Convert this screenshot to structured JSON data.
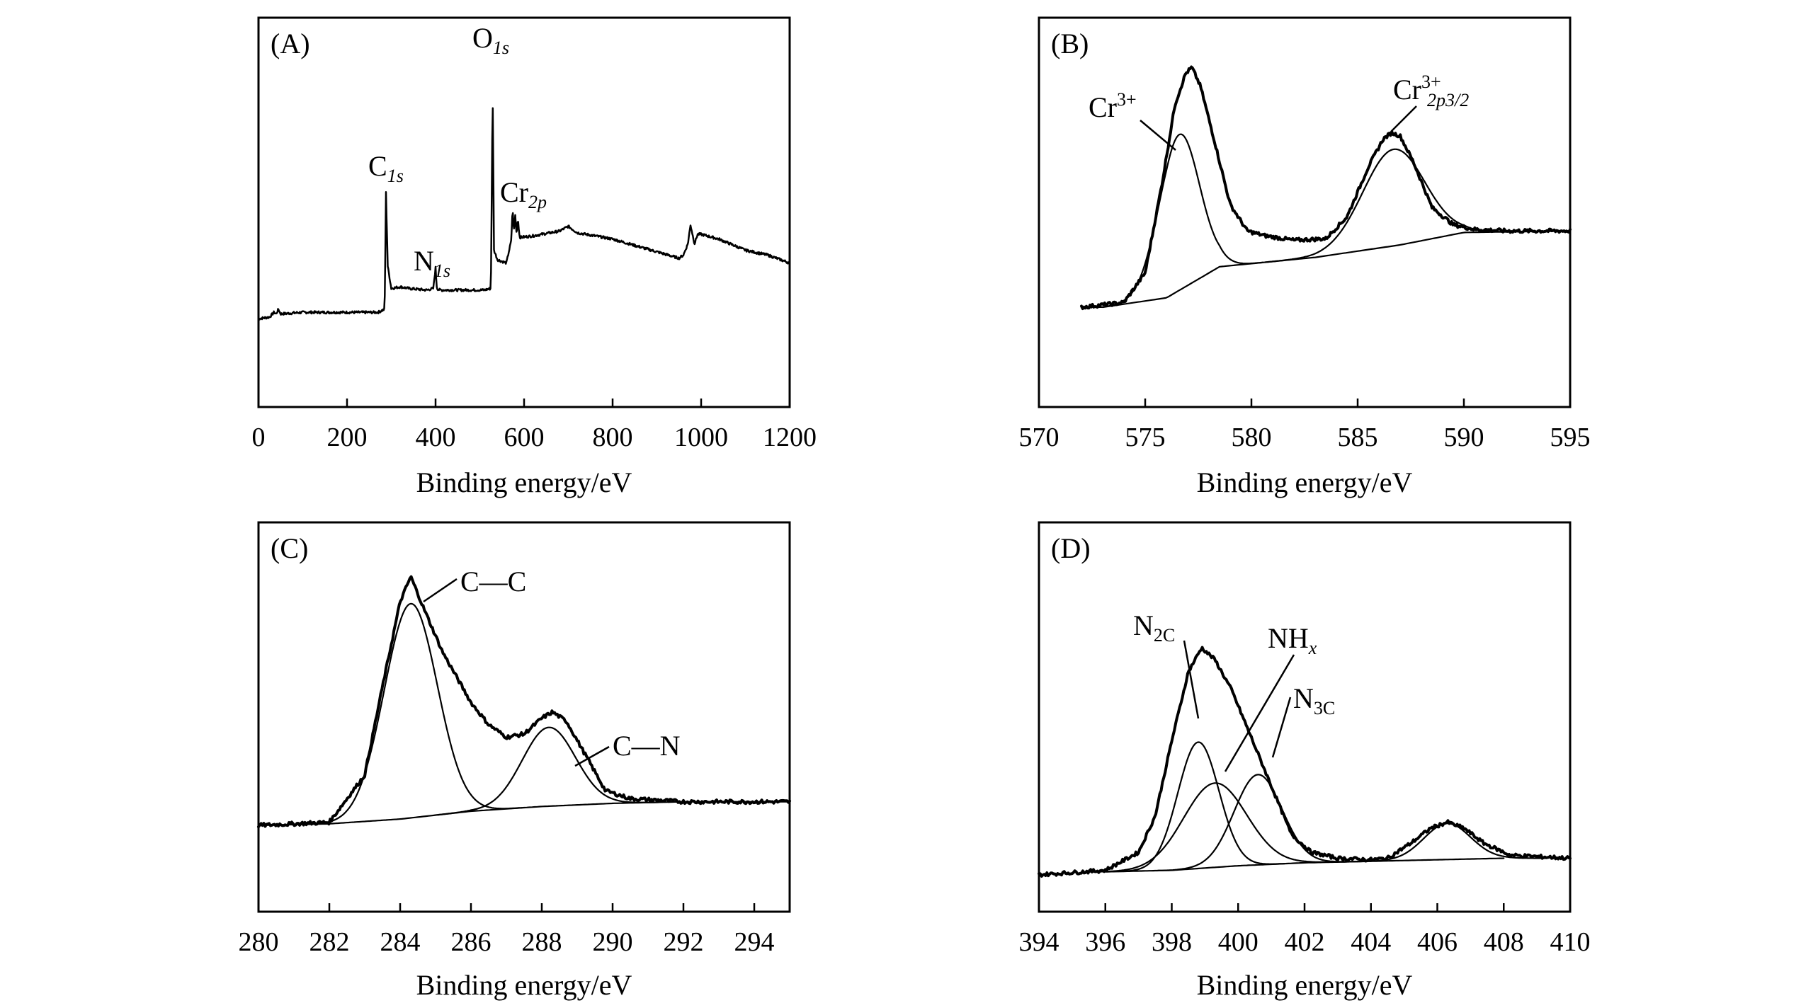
{
  "chart_data": [
    {
      "type": "line",
      "panel_label": "(A)",
      "xlabel": "Binding energy/eV",
      "ylabel": "",
      "xlim": [
        0,
        1200
      ],
      "ylim": [
        0,
        100
      ],
      "xticks": [
        "0",
        "200",
        "400",
        "600",
        "800",
        "1000",
        "1200"
      ],
      "series": [
        {
          "name": "survey",
          "x": [
            0,
            25,
            35,
            40,
            45,
            50,
            100,
            200,
            270,
            285,
            288,
            292,
            300,
            320,
            340,
            380,
            395,
            400,
            403,
            410,
            430,
            470,
            510,
            525,
            529,
            532,
            540,
            560,
            571,
            574,
            577,
            580,
            583,
            586,
            590,
            620,
            680,
            700,
            720,
            800,
            900,
            950,
            960,
            970,
            976,
            985,
            992,
            1000,
            1040,
            1100,
            1150,
            1200
          ],
          "y": [
            15.5,
            16,
            17.5,
            17,
            18.5,
            17,
            17.5,
            17.5,
            17.5,
            18.5,
            55,
            32,
            25,
            25.5,
            25,
            24.5,
            25,
            31.5,
            25,
            24.5,
            24.5,
            24.5,
            24.5,
            25,
            87,
            37,
            34,
            33,
            40,
            50,
            43,
            48,
            42,
            47,
            41,
            41.5,
            43,
            44.5,
            42.5,
            40.5,
            36.5,
            34.5,
            35.5,
            39,
            45,
            39,
            42,
            42,
            40.5,
            37,
            35.5,
            33
          ]
        }
      ],
      "annotations": [
        {
          "id": "c1s",
          "text": "C",
          "subscript": "1s"
        },
        {
          "id": "n1s",
          "text": "N",
          "subscript": "1s"
        },
        {
          "id": "o1s",
          "text": "O",
          "subscript": "1s"
        },
        {
          "id": "cr2p",
          "text": "Cr",
          "subscript": "2p"
        }
      ]
    },
    {
      "type": "line",
      "panel_label": "(B)",
      "xlabel": "Binding energy/eV",
      "ylabel": "",
      "xlim": [
        570,
        595
      ],
      "ylim": [
        0,
        100
      ],
      "xticks": [
        "570",
        "575",
        "580",
        "585",
        "590",
        "595"
      ],
      "series": [
        {
          "name": "Cr3+ component",
          "type": "gaussian",
          "center": 576.6,
          "amplitude": 50,
          "sigma": 0.95,
          "baseline": "shirley"
        },
        {
          "name": "Cr2p3/2 component",
          "type": "gaussian",
          "center": 586.7,
          "amplitude": 31,
          "sigma": 1.45,
          "baseline": "shirley"
        },
        {
          "name": "background",
          "x": [
            573,
            576,
            578.5,
            583,
            587,
            590,
            595
          ],
          "y": [
            15,
            18,
            28,
            31,
            35,
            39,
            39.5
          ]
        },
        {
          "name": "envelope",
          "x": [
            572,
            574,
            575,
            575.8,
            576.4,
            576.9,
            577.2,
            577.6,
            578.2,
            579,
            579.8,
            580.6,
            582,
            583.5,
            584.5,
            585.5,
            586.2,
            586.6,
            587,
            587.6,
            588.5,
            589.5,
            590.5,
            592,
            595
          ],
          "y": [
            15,
            16.5,
            26,
            55,
            80,
            90,
            92,
            86,
            70,
            48,
            39.5,
            38,
            36.5,
            37,
            44,
            60,
            69,
            71,
            70,
            62,
            47,
            41.5,
            40,
            39.5,
            39.5
          ]
        }
      ],
      "annotations": [
        {
          "id": "cr3",
          "text": "Cr",
          "superscript": "3+"
        },
        {
          "id": "cr2p32",
          "text": "Cr",
          "superscript": "3+",
          "subscript": "2p3/2"
        }
      ]
    },
    {
      "type": "line",
      "panel_label": "(C)",
      "xlabel": "Binding energy/eV",
      "ylabel": "",
      "xlim": [
        280,
        295
      ],
      "ylim": [
        0,
        100
      ],
      "xticks": [
        "280",
        "282",
        "284",
        "286",
        "288",
        "290",
        "292",
        "294"
      ],
      "series": [
        {
          "name": "C—C component",
          "type": "gaussian",
          "center": 284.3,
          "amplitude": 68,
          "sigma": 0.75,
          "baseline": "shirley"
        },
        {
          "name": "C—N component",
          "type": "gaussian",
          "center": 288.2,
          "amplitude": 25,
          "sigma": 0.75,
          "baseline": "shirley"
        },
        {
          "name": "background",
          "x": [
            280,
            282,
            284,
            286,
            288,
            290,
            292,
            295
          ],
          "y": [
            11,
            11.5,
            13,
            15.5,
            17,
            18,
            18.5,
            18.5
          ]
        },
        {
          "name": "envelope",
          "x": [
            280,
            282,
            283,
            283.5,
            284,
            284.3,
            284.7,
            285.2,
            286,
            286.5,
            287,
            287.5,
            288,
            288.3,
            288.7,
            289.2,
            289.8,
            290.5,
            292,
            295
          ],
          "y": [
            11,
            12,
            27,
            55,
            82,
            90,
            79,
            66,
            50,
            43,
            39,
            40,
            45,
            47,
            44,
            34,
            22,
            19.5,
            18.5,
            18.5
          ]
        }
      ],
      "annotations": [
        {
          "id": "cc",
          "text": "C—C"
        },
        {
          "id": "cn",
          "text": "C—N"
        }
      ]
    },
    {
      "type": "line",
      "panel_label": "(D)",
      "xlabel": "Binding energy/eV",
      "ylabel": "",
      "xlim": [
        394,
        410
      ],
      "ylim": [
        0,
        100
      ],
      "xticks": [
        "394",
        "396",
        "398",
        "400",
        "402",
        "404",
        "406",
        "408",
        "410"
      ],
      "series": [
        {
          "name": "N2C component",
          "type": "gaussian",
          "center": 398.8,
          "amplitude": 42,
          "sigma": 0.62,
          "baseline": "shirley"
        },
        {
          "name": "NHx component",
          "type": "gaussian",
          "center": 399.3,
          "amplitude": 28,
          "sigma": 0.95,
          "baseline": "shirley"
        },
        {
          "name": "N3C component",
          "type": "gaussian",
          "center": 400.6,
          "amplitude": 30,
          "sigma": 0.72,
          "baseline": "shirley"
        },
        {
          "name": "satellite component",
          "type": "gaussian",
          "center": 406.3,
          "amplitude": 12,
          "sigma": 0.7,
          "baseline": "shirley"
        },
        {
          "name": "background",
          "x": [
            396,
            398,
            400,
            402,
            404,
            406,
            408
          ],
          "y": [
            5.5,
            6,
            7.5,
            8.5,
            9,
            9.5,
            10
          ]
        },
        {
          "name": "envelope",
          "x": [
            394,
            396,
            397,
            397.5,
            398,
            398.5,
            398.9,
            399.3,
            399.8,
            400.4,
            401,
            401.6,
            402.2,
            403,
            404,
            404.5,
            405.2,
            405.8,
            406.3,
            406.8,
            407.4,
            408.2,
            410
          ],
          "y": [
            4.5,
            6,
            12,
            24,
            49,
            72,
            80,
            76,
            66,
            50,
            34,
            18,
            12,
            10,
            9.5,
            10,
            15,
            20,
            22,
            20,
            15,
            11,
            10
          ]
        }
      ],
      "annotations": [
        {
          "id": "n2c",
          "text": "N",
          "subscript": "2C"
        },
        {
          "id": "nhx",
          "text": "NH",
          "subscript": "x"
        },
        {
          "id": "n3c",
          "text": "N",
          "subscript": "3C"
        }
      ]
    }
  ]
}
